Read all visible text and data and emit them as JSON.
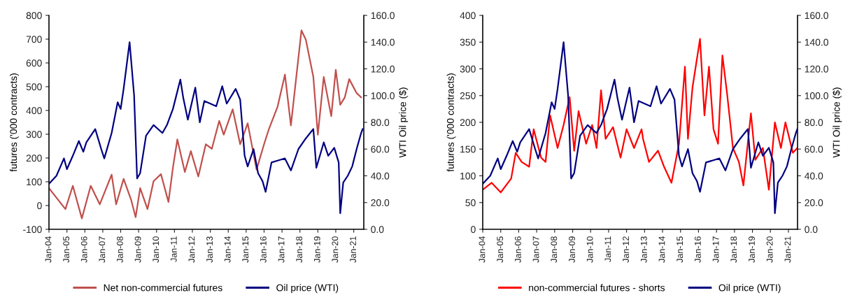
{
  "chart_data": [
    {
      "type": "line",
      "ylabel": "futures ('000 contracts)",
      "y2label": "WTI Oil price ($)",
      "legend": "bottom",
      "grid": false,
      "marker": "none",
      "line_style": "solid",
      "xlim": [
        "2004-01-01",
        "2021-07-25"
      ],
      "xticks": [
        {
          "value": "2004-01",
          "label": "Jan-04"
        },
        {
          "value": "2005-01",
          "label": "Jan-05"
        },
        {
          "value": "2006-01",
          "label": "Jan-06"
        },
        {
          "value": "2007-01",
          "label": "Jan-07"
        },
        {
          "value": "2008-01",
          "label": "Jan-08"
        },
        {
          "value": "2009-01",
          "label": "Jan-09"
        },
        {
          "value": "2010-01",
          "label": "Jan-10"
        },
        {
          "value": "2011-01",
          "label": "Jan-11"
        },
        {
          "value": "2012-01",
          "label": "Jan-12"
        },
        {
          "value": "2013-01",
          "label": "Jan-13"
        },
        {
          "value": "2014-01",
          "label": "Jan-14"
        },
        {
          "value": "2015-01",
          "label": "Jan-15"
        },
        {
          "value": "2016-01",
          "label": "Jan-16"
        },
        {
          "value": "2017-01",
          "label": "Jan-17"
        },
        {
          "value": "2018-01",
          "label": "Jan-18"
        },
        {
          "value": "2019-01",
          "label": "Jan-19"
        },
        {
          "value": "2020-01",
          "label": "Jan-20"
        },
        {
          "value": "2021-01",
          "label": "Jan-21"
        }
      ],
      "ylim": [
        -100,
        800
      ],
      "yticks": [
        -100,
        0,
        100,
        200,
        300,
        400,
        500,
        600,
        700,
        800
      ],
      "y2lim": [
        0,
        160
      ],
      "y2ticks": [
        {
          "value": 0,
          "label": "0.0"
        },
        {
          "value": 20,
          "label": "20.0"
        },
        {
          "value": 40,
          "label": "40.0"
        },
        {
          "value": 60,
          "label": "60.0"
        },
        {
          "value": 80,
          "label": "80.0"
        },
        {
          "value": 100,
          "label": "100.0"
        },
        {
          "value": 120,
          "label": "120.0"
        },
        {
          "value": 140,
          "label": "140.0"
        },
        {
          "value": 160,
          "label": "160.0"
        }
      ],
      "series": [
        {
          "name": "Net non-commercial futures",
          "color": "#c0504d",
          "x": [
            "2004-01",
            "2004-12",
            "2005-05",
            "2005-11",
            "2006-05",
            "2006-11",
            "2007-07",
            "2007-10",
            "2008-03",
            "2008-08",
            "2008-11",
            "2009-02",
            "2009-07",
            "2009-11",
            "2010-04",
            "2010-09",
            "2010-12",
            "2011-03",
            "2011-08",
            "2011-12",
            "2012-05",
            "2012-10",
            "2013-02",
            "2013-07",
            "2013-10",
            "2014-04",
            "2014-09",
            "2015-02",
            "2015-08",
            "2016-01",
            "2016-04",
            "2016-10",
            "2017-03",
            "2017-07",
            "2018-02",
            "2018-05",
            "2018-10",
            "2019-01",
            "2019-05",
            "2019-10",
            "2020-01",
            "2020-04",
            "2020-07",
            "2020-10",
            "2021-03",
            "2021-06"
          ],
          "values": [
            73,
            -15,
            83,
            -54,
            83,
            5,
            130,
            5,
            112,
            24,
            -49,
            73,
            -15,
            102,
            132,
            15,
            160,
            278,
            141,
            229,
            122,
            258,
            239,
            356,
            298,
            405,
            258,
            346,
            151,
            258,
            317,
            415,
            551,
            337,
            737,
            698,
            541,
            298,
            541,
            376,
            571,
            424,
            454,
            532,
            473,
            455
          ]
        },
        {
          "name": "Oil price (WTI)",
          "color": "#000080",
          "axis": "y2",
          "x": [
            "2004-01",
            "2004-06",
            "2004-11",
            "2005-01",
            "2005-05",
            "2005-09",
            "2005-12",
            "2006-02",
            "2006-08",
            "2006-12",
            "2007-02",
            "2007-07",
            "2007-11",
            "2008-01",
            "2008-03",
            "2008-07",
            "2008-10",
            "2008-12",
            "2009-02",
            "2009-06",
            "2009-11",
            "2010-05",
            "2010-08",
            "2010-12",
            "2011-05",
            "2011-07",
            "2011-10",
            "2012-03",
            "2012-06",
            "2012-09",
            "2013-01",
            "2013-05",
            "2013-09",
            "2013-12",
            "2014-06",
            "2014-09",
            "2014-12",
            "2015-02",
            "2015-06",
            "2015-09",
            "2015-12",
            "2016-02",
            "2016-06",
            "2016-12",
            "2017-03",
            "2017-07",
            "2017-12",
            "2018-05",
            "2018-10",
            "2018-12",
            "2019-05",
            "2019-08",
            "2019-12",
            "2020-03",
            "2020-04",
            "2020-06",
            "2020-09",
            "2020-12",
            "2021-03",
            "2021-06",
            "2021-07"
          ],
          "values": [
            34,
            40,
            53,
            45,
            55,
            66,
            58,
            65,
            75,
            60,
            53,
            72,
            95,
            90,
            105,
            140,
            100,
            38,
            42,
            70,
            78,
            72,
            78,
            90,
            112,
            98,
            82,
            106,
            80,
            96,
            94,
            92,
            107,
            94,
            105,
            97,
            55,
            47,
            60,
            42,
            36,
            28,
            50,
            52,
            53,
            44,
            60,
            68,
            75,
            46,
            65,
            55,
            61,
            50,
            12,
            35,
            40,
            47,
            60,
            72,
            75
          ]
        }
      ]
    },
    {
      "type": "line",
      "ylabel": "futures ('000 contracts)",
      "y2label": "WTI Oil price ($)",
      "legend": "bottom",
      "grid": false,
      "marker": "none",
      "line_style": "solid",
      "xlim": [
        "2004-01-01",
        "2021-07-05"
      ],
      "xticks": [
        {
          "value": "2004-01",
          "label": "Jan-04"
        },
        {
          "value": "2005-01",
          "label": "Jan-05"
        },
        {
          "value": "2006-01",
          "label": "Jan-06"
        },
        {
          "value": "2007-01",
          "label": "Jan-07"
        },
        {
          "value": "2008-01",
          "label": "Jan-08"
        },
        {
          "value": "2009-01",
          "label": "Jan-09"
        },
        {
          "value": "2010-01",
          "label": "Jan-10"
        },
        {
          "value": "2011-01",
          "label": "Jan-11"
        },
        {
          "value": "2012-01",
          "label": "Jan-12"
        },
        {
          "value": "2013-01",
          "label": "Jan-13"
        },
        {
          "value": "2014-01",
          "label": "Jan-14"
        },
        {
          "value": "2015-01",
          "label": "Jan-15"
        },
        {
          "value": "2016-01",
          "label": "Jan-16"
        },
        {
          "value": "2017-01",
          "label": "Jan-17"
        },
        {
          "value": "2018-01",
          "label": "Jan-18"
        },
        {
          "value": "2019-01",
          "label": "Jan-19"
        },
        {
          "value": "2020-01",
          "label": "Jan-20"
        },
        {
          "value": "2021-01",
          "label": "Jan-21"
        }
      ],
      "ylim": [
        0,
        400
      ],
      "yticks": [
        0,
        50,
        100,
        150,
        200,
        250,
        300,
        350,
        400
      ],
      "y2lim": [
        0,
        160
      ],
      "y2ticks": [
        {
          "value": 0,
          "label": "0.0"
        },
        {
          "value": 20,
          "label": "20.0"
        },
        {
          "value": 40,
          "label": "40.0"
        },
        {
          "value": 60,
          "label": "60.0"
        },
        {
          "value": 80,
          "label": "80.0"
        },
        {
          "value": 100,
          "label": "100.0"
        },
        {
          "value": 120,
          "label": "120.0"
        },
        {
          "value": 140,
          "label": "140.0"
        },
        {
          "value": 160,
          "label": "160.0"
        }
      ],
      "series": [
        {
          "name": "non-commercial futures - shorts",
          "color": "#ff0000",
          "x": [
            "2004-01",
            "2004-07",
            "2005-01",
            "2005-08",
            "2005-11",
            "2006-03",
            "2006-08",
            "2006-11",
            "2007-04",
            "2007-07",
            "2007-10",
            "2008-03",
            "2008-07",
            "2008-11",
            "2009-02",
            "2009-05",
            "2009-10",
            "2010-02",
            "2010-05",
            "2010-08",
            "2010-11",
            "2011-04",
            "2011-09",
            "2012-01",
            "2012-06",
            "2012-11",
            "2012-12",
            "2013-04",
            "2013-10",
            "2014-02",
            "2014-07",
            "2014-12",
            "2015-04",
            "2015-06",
            "2015-09",
            "2016-02",
            "2016-05",
            "2016-08",
            "2016-11",
            "2017-02",
            "2017-05",
            "2017-08",
            "2017-12",
            "2018-04",
            "2018-07",
            "2018-12",
            "2019-03",
            "2019-08",
            "2019-12",
            "2020-04",
            "2020-08",
            "2020-11",
            "2021-04",
            "2021-07"
          ],
          "values": [
            74,
            87,
            69,
            95,
            143,
            126,
            117,
            187,
            134,
            126,
            213,
            152,
            195,
            247,
            147,
            221,
            160,
            195,
            152,
            260,
            169,
            191,
            134,
            187,
            152,
            187,
            169,
            126,
            147,
            117,
            87,
            160,
            304,
            169,
            265,
            356,
            213,
            304,
            187,
            160,
            325,
            256,
            152,
            126,
            82,
            217,
            130,
            152,
            74,
            200,
            152,
            200,
            143,
            152
          ]
        },
        {
          "name": "Oil price (WTI)",
          "color": "#000080",
          "axis": "y2",
          "x": [
            "2004-01",
            "2004-06",
            "2004-11",
            "2005-01",
            "2005-05",
            "2005-09",
            "2005-12",
            "2006-02",
            "2006-08",
            "2006-12",
            "2007-02",
            "2007-07",
            "2007-11",
            "2008-01",
            "2008-03",
            "2008-07",
            "2008-10",
            "2008-12",
            "2009-02",
            "2009-06",
            "2009-11",
            "2010-05",
            "2010-08",
            "2010-12",
            "2011-05",
            "2011-07",
            "2011-10",
            "2012-03",
            "2012-06",
            "2012-09",
            "2013-01",
            "2013-05",
            "2013-09",
            "2013-12",
            "2014-06",
            "2014-09",
            "2014-12",
            "2015-02",
            "2015-06",
            "2015-09",
            "2015-12",
            "2016-02",
            "2016-06",
            "2016-12",
            "2017-03",
            "2017-07",
            "2017-12",
            "2018-05",
            "2018-10",
            "2018-12",
            "2019-05",
            "2019-08",
            "2019-12",
            "2020-03",
            "2020-04",
            "2020-06",
            "2020-09",
            "2020-12",
            "2021-03",
            "2021-06",
            "2021-07"
          ],
          "values": [
            34,
            40,
            53,
            45,
            55,
            66,
            58,
            65,
            75,
            60,
            53,
            72,
            95,
            90,
            105,
            140,
            100,
            38,
            42,
            70,
            78,
            72,
            78,
            90,
            112,
            98,
            82,
            106,
            80,
            96,
            94,
            92,
            107,
            94,
            105,
            97,
            55,
            47,
            60,
            42,
            36,
            28,
            50,
            52,
            53,
            44,
            60,
            68,
            75,
            46,
            65,
            55,
            61,
            50,
            12,
            35,
            40,
            47,
            60,
            72,
            75
          ]
        }
      ]
    }
  ]
}
